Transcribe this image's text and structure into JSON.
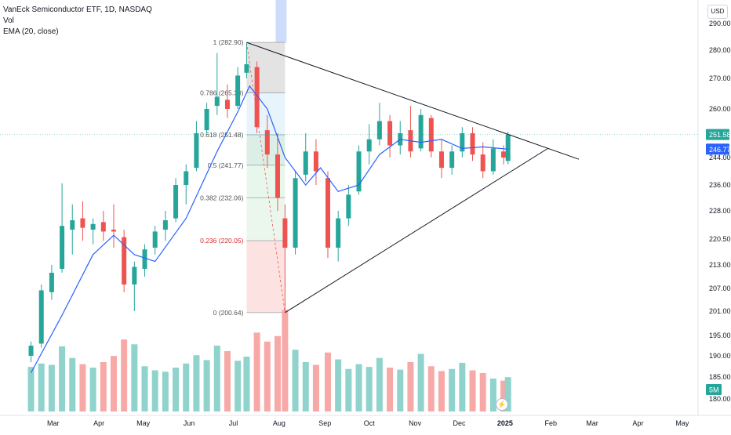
{
  "legend": {
    "symbol_line": "VanEck Semiconductor ETF, 1D, NASDAQ",
    "vol_label": "Vol",
    "ema_label": "EMA (20, close)"
  },
  "currency_button": "USD",
  "colors": {
    "up": "#26a69a",
    "down": "#ef5350",
    "vol_up": "#8fd3cc",
    "vol_down": "#f7a9a7",
    "ema": "#2962ff",
    "trendline": "#131722",
    "price_badge": "#26a69a",
    "ema_badge": "#2962ff",
    "vol_badge": "#26a69a"
  },
  "chart_data": {
    "type": "candlestick",
    "symbol": "VanEck Semiconductor ETF",
    "interval": "1D",
    "exchange": "NASDAQ",
    "y_ticks": [
      "290.00",
      "280.00",
      "270.00",
      "260.00",
      "251.58",
      "246.77",
      "244.00",
      "236.00",
      "228.00",
      "220.50",
      "213.00",
      "207.00",
      "201.00",
      "195.00",
      "190.00",
      "185.00",
      "180.00"
    ],
    "x_ticks": [
      "Mar",
      "Apr",
      "May",
      "Jun",
      "Jul",
      "Aug",
      "Sep",
      "Oct",
      "Nov",
      "Dec",
      "2025",
      "Feb",
      "Mar",
      "Apr",
      "May"
    ],
    "last_price": "251.58",
    "ema_value": "246.77",
    "volume_badge": "5M",
    "fib_retracement": [
      {
        "level": "1",
        "price": 282.9,
        "label": "1 (282.90)"
      },
      {
        "level": "0.786",
        "price": 265.3,
        "label": "0.786 (265.30)"
      },
      {
        "level": "0.618",
        "price": 251.48,
        "label": "0.618 (251.48)"
      },
      {
        "level": "0.5",
        "price": 241.77,
        "label": "0.5 (241.77)"
      },
      {
        "level": "0.382",
        "price": 232.06,
        "label": "0.382 (232.06)"
      },
      {
        "level": "0.236",
        "price": 220.05,
        "label": "0.236 (220.05)"
      },
      {
        "level": "0",
        "price": 200.64,
        "label": "0 (200.64)"
      }
    ],
    "triangle": {
      "upper": [
        {
          "date": "2024-07-10",
          "price": 282.9
        },
        {
          "date": "2025-02-20",
          "price": 243.5
        }
      ],
      "lower": [
        {
          "date": "2024-08-05",
          "price": 200.64
        },
        {
          "date": "2025-01-30",
          "price": 247.0
        }
      ]
    },
    "candles": [
      {
        "d": "2024-02-15",
        "o": 190.0,
        "h": 193.5,
        "l": 188.5,
        "c": 192.5
      },
      {
        "d": "2024-02-22",
        "o": 193.0,
        "h": 208.0,
        "l": 192.0,
        "c": 206.5
      },
      {
        "d": "2024-02-29",
        "o": 206.0,
        "h": 213.0,
        "l": 204.0,
        "c": 211.0
      },
      {
        "d": "2024-03-07",
        "o": 212.0,
        "h": 236.5,
        "l": 211.0,
        "c": 224.0
      },
      {
        "d": "2024-03-14",
        "o": 223.0,
        "h": 230.0,
        "l": 216.0,
        "c": 225.5
      },
      {
        "d": "2024-03-21",
        "o": 226.0,
        "h": 231.0,
        "l": 220.0,
        "c": 223.5
      },
      {
        "d": "2024-03-28",
        "o": 223.0,
        "h": 226.0,
        "l": 219.0,
        "c": 224.5
      },
      {
        "d": "2024-04-04",
        "o": 225.0,
        "h": 228.0,
        "l": 220.0,
        "c": 222.5
      },
      {
        "d": "2024-04-11",
        "o": 223.0,
        "h": 230.0,
        "l": 218.0,
        "c": 222.5
      },
      {
        "d": "2024-04-18",
        "o": 221.0,
        "h": 223.0,
        "l": 206.0,
        "c": 208.0
      },
      {
        "d": "2024-04-25",
        "o": 208.0,
        "h": 214.0,
        "l": 201.0,
        "c": 212.5
      },
      {
        "d": "2024-05-02",
        "o": 212.0,
        "h": 219.0,
        "l": 210.0,
        "c": 217.5
      },
      {
        "d": "2024-05-09",
        "o": 218.0,
        "h": 224.0,
        "l": 216.0,
        "c": 222.5
      },
      {
        "d": "2024-05-16",
        "o": 223.0,
        "h": 228.0,
        "l": 220.0,
        "c": 225.5
      },
      {
        "d": "2024-05-23",
        "o": 226.0,
        "h": 238.0,
        "l": 225.0,
        "c": 236.0
      },
      {
        "d": "2024-05-30",
        "o": 236.0,
        "h": 242.0,
        "l": 230.0,
        "c": 240.0
      },
      {
        "d": "2024-06-06",
        "o": 241.0,
        "h": 256.0,
        "l": 240.0,
        "c": 252.0
      },
      {
        "d": "2024-06-13",
        "o": 253.0,
        "h": 262.0,
        "l": 252.0,
        "c": 260.0
      },
      {
        "d": "2024-06-20",
        "o": 261.0,
        "h": 279.0,
        "l": 258.0,
        "c": 264.0
      },
      {
        "d": "2024-06-27",
        "o": 263.0,
        "h": 268.0,
        "l": 257.0,
        "c": 260.0
      },
      {
        "d": "2024-07-04",
        "o": 261.0,
        "h": 274.0,
        "l": 260.0,
        "c": 271.0
      },
      {
        "d": "2024-07-10",
        "o": 272.0,
        "h": 282.9,
        "l": 270.0,
        "c": 275.0
      },
      {
        "d": "2024-07-17",
        "o": 274.0,
        "h": 276.0,
        "l": 252.0,
        "c": 254.0
      },
      {
        "d": "2024-07-24",
        "o": 253.0,
        "h": 258.0,
        "l": 241.0,
        "c": 245.0
      },
      {
        "d": "2024-07-31",
        "o": 245.0,
        "h": 252.0,
        "l": 228.0,
        "c": 232.0
      },
      {
        "d": "2024-08-05",
        "o": 226.0,
        "h": 230.0,
        "l": 200.64,
        "c": 218.0
      },
      {
        "d": "2024-08-12",
        "o": 218.0,
        "h": 240.0,
        "l": 216.0,
        "c": 238.0
      },
      {
        "d": "2024-08-19",
        "o": 239.0,
        "h": 252.0,
        "l": 237.0,
        "c": 246.0
      },
      {
        "d": "2024-08-26",
        "o": 246.0,
        "h": 250.0,
        "l": 236.0,
        "c": 240.0
      },
      {
        "d": "2024-09-03",
        "o": 238.0,
        "h": 240.0,
        "l": 215.0,
        "c": 218.0
      },
      {
        "d": "2024-09-10",
        "o": 218.0,
        "h": 228.0,
        "l": 214.0,
        "c": 226.0
      },
      {
        "d": "2024-09-17",
        "o": 226.0,
        "h": 236.0,
        "l": 224.0,
        "c": 233.0
      },
      {
        "d": "2024-09-24",
        "o": 234.0,
        "h": 248.0,
        "l": 233.0,
        "c": 246.0
      },
      {
        "d": "2024-10-01",
        "o": 246.0,
        "h": 255.0,
        "l": 242.0,
        "c": 250.0
      },
      {
        "d": "2024-10-08",
        "o": 250.0,
        "h": 262.0,
        "l": 248.0,
        "c": 256.0
      },
      {
        "d": "2024-10-15",
        "o": 256.0,
        "h": 258.0,
        "l": 244.0,
        "c": 248.0
      },
      {
        "d": "2024-10-22",
        "o": 248.0,
        "h": 256.0,
        "l": 245.0,
        "c": 252.0
      },
      {
        "d": "2024-10-29",
        "o": 253.0,
        "h": 261.0,
        "l": 244.0,
        "c": 246.0
      },
      {
        "d": "2024-11-05",
        "o": 247.0,
        "h": 260.0,
        "l": 246.0,
        "c": 258.0
      },
      {
        "d": "2024-11-12",
        "o": 257.0,
        "h": 258.0,
        "l": 244.0,
        "c": 246.0
      },
      {
        "d": "2024-11-19",
        "o": 246.0,
        "h": 250.0,
        "l": 238.0,
        "c": 241.0
      },
      {
        "d": "2024-11-26",
        "o": 241.0,
        "h": 248.0,
        "l": 239.0,
        "c": 246.0
      },
      {
        "d": "2024-12-03",
        "o": 246.0,
        "h": 254.0,
        "l": 244.0,
        "c": 252.0
      },
      {
        "d": "2024-12-10",
        "o": 252.0,
        "h": 254.0,
        "l": 243.0,
        "c": 245.0
      },
      {
        "d": "2024-12-17",
        "o": 245.0,
        "h": 249.0,
        "l": 238.0,
        "c": 240.0
      },
      {
        "d": "2024-12-24",
        "o": 240.0,
        "h": 250.0,
        "l": 239.0,
        "c": 247.0
      },
      {
        "d": "2024-12-31",
        "o": 246.0,
        "h": 248.0,
        "l": 242.0,
        "c": 244.0
      },
      {
        "d": "2025-01-03",
        "o": 243.0,
        "h": 252.5,
        "l": 242.0,
        "c": 251.58
      }
    ],
    "volume": [
      6.5,
      7.0,
      6.8,
      9.5,
      7.8,
      6.9,
      6.4,
      7.2,
      8.1,
      10.5,
      9.8,
      6.6,
      6.0,
      5.8,
      6.4,
      7.0,
      8.2,
      7.5,
      9.6,
      8.8,
      7.4,
      8.0,
      11.5,
      10.2,
      11.0,
      14.8,
      9.0,
      7.2,
      6.8,
      8.6,
      7.6,
      6.2,
      6.9,
      6.5,
      7.8,
      6.4,
      6.1,
      7.2,
      8.4,
      6.6,
      5.9,
      6.2,
      7.1,
      6.0,
      5.6,
      4.8,
      4.5,
      5.0
    ],
    "volume_ymax": 16,
    "ema": [
      {
        "d": "2024-02-15",
        "v": 186.0
      },
      {
        "d": "2024-03-07",
        "v": 200.0
      },
      {
        "d": "2024-03-28",
        "v": 216.0
      },
      {
        "d": "2024-04-11",
        "v": 221.5
      },
      {
        "d": "2024-04-25",
        "v": 216.0
      },
      {
        "d": "2024-05-09",
        "v": 214.0
      },
      {
        "d": "2024-05-30",
        "v": 226.0
      },
      {
        "d": "2024-06-20",
        "v": 246.0
      },
      {
        "d": "2024-07-04",
        "v": 259.0
      },
      {
        "d": "2024-07-12",
        "v": 267.5
      },
      {
        "d": "2024-07-24",
        "v": 260.0
      },
      {
        "d": "2024-08-05",
        "v": 244.0
      },
      {
        "d": "2024-08-19",
        "v": 236.0
      },
      {
        "d": "2024-08-29",
        "v": 241.0
      },
      {
        "d": "2024-09-10",
        "v": 234.0
      },
      {
        "d": "2024-09-24",
        "v": 236.0
      },
      {
        "d": "2024-10-08",
        "v": 245.0
      },
      {
        "d": "2024-10-22",
        "v": 250.0
      },
      {
        "d": "2024-11-05",
        "v": 249.0
      },
      {
        "d": "2024-11-19",
        "v": 250.0
      },
      {
        "d": "2024-12-03",
        "v": 247.0
      },
      {
        "d": "2024-12-17",
        "v": 247.5
      },
      {
        "d": "2025-01-03",
        "v": 246.77
      }
    ]
  }
}
